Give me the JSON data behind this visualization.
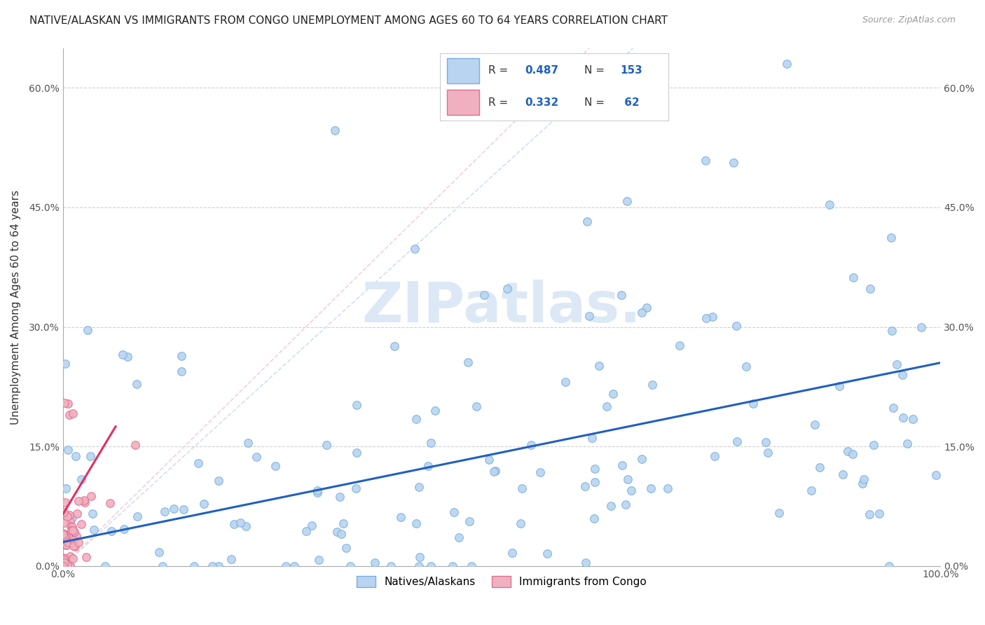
{
  "title": "NATIVE/ALASKAN VS IMMIGRANTS FROM CONGO UNEMPLOYMENT AMONG AGES 60 TO 64 YEARS CORRELATION CHART",
  "source": "Source: ZipAtlas.com",
  "ylabel": "Unemployment Among Ages 60 to 64 years",
  "xlim": [
    0,
    1.0
  ],
  "ylim": [
    0,
    0.65
  ],
  "xtick_labels": [
    "0.0%",
    "100.0%"
  ],
  "ytick_labels": [
    "0.0%",
    "15.0%",
    "30.0%",
    "45.0%",
    "60.0%"
  ],
  "ytick_values": [
    0.0,
    0.15,
    0.3,
    0.45,
    0.6
  ],
  "blue_R": 0.487,
  "blue_N": 153,
  "pink_R": 0.332,
  "pink_N": 62,
  "blue_color": "#b8d4f0",
  "blue_edge": "#7aaede",
  "pink_color": "#f0b0c0",
  "pink_edge": "#e07090",
  "blue_line_color": "#2060c0",
  "pink_line_color": "#e03060",
  "blue_diag_color": "#d0dff5",
  "pink_diag_color": "#f5d0d8",
  "watermark_color": "#dce8f5",
  "background_color": "#ffffff",
  "grid_color": "#d0d0d0",
  "title_fontsize": 11,
  "axis_label_fontsize": 11,
  "tick_fontsize": 10,
  "legend_fontsize": 11,
  "marker_size": 70,
  "blue_seed": 12,
  "pink_seed": 99
}
